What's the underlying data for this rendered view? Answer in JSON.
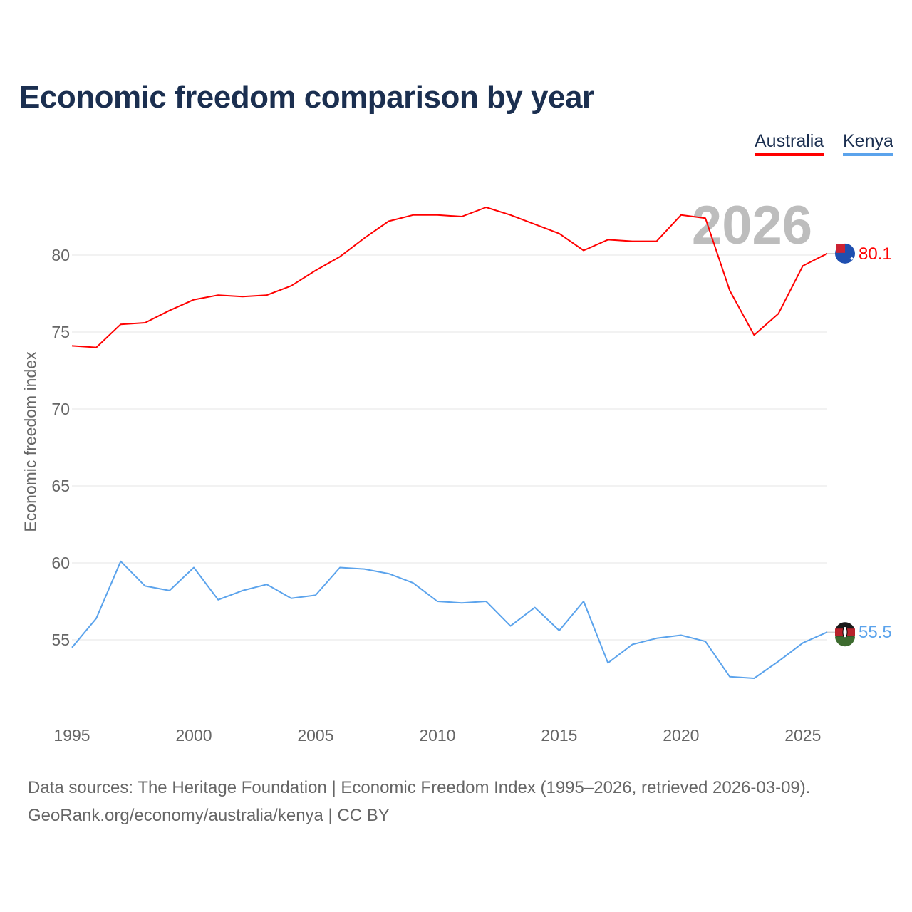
{
  "chart_data": {
    "type": "line",
    "title": "Economic freedom comparison by year",
    "xlabel": "",
    "ylabel": "Economic freedom index",
    "xlim": [
      1995,
      2026
    ],
    "ylim": [
      50,
      85
    ],
    "x_ticks": [
      "1995",
      "2000",
      "2005",
      "2010",
      "2015",
      "2020",
      "2025"
    ],
    "y_ticks": [
      "55",
      "60",
      "65",
      "70",
      "75",
      "80"
    ],
    "grid": true,
    "legend_position": "top-right",
    "year_watermark": "2026",
    "x": [
      1995,
      1996,
      1997,
      1998,
      1999,
      2000,
      2001,
      2002,
      2003,
      2004,
      2005,
      2006,
      2007,
      2008,
      2009,
      2010,
      2011,
      2012,
      2013,
      2014,
      2015,
      2016,
      2017,
      2018,
      2019,
      2020,
      2021,
      2022,
      2023,
      2024,
      2025,
      2026
    ],
    "series": [
      {
        "name": "Australia",
        "color": "#ff0000",
        "end_label": "80.1",
        "values": [
          74.1,
          74.0,
          75.5,
          75.6,
          76.4,
          77.1,
          77.4,
          77.3,
          77.4,
          78.0,
          79.0,
          79.9,
          81.1,
          82.2,
          82.6,
          82.6,
          82.5,
          83.1,
          82.6,
          82.0,
          81.4,
          80.3,
          81.0,
          80.9,
          80.9,
          82.6,
          82.4,
          77.7,
          74.8,
          76.2,
          79.3,
          80.1
        ]
      },
      {
        "name": "Kenya",
        "color": "#5ba3ec",
        "end_label": "55.5",
        "values": [
          54.5,
          56.4,
          60.1,
          58.5,
          58.2,
          59.7,
          57.6,
          58.2,
          58.6,
          57.7,
          57.9,
          59.7,
          59.6,
          59.3,
          58.7,
          57.5,
          57.4,
          57.5,
          55.9,
          57.1,
          55.6,
          57.5,
          53.5,
          54.7,
          55.1,
          55.3,
          54.9,
          52.6,
          52.5,
          53.6,
          54.8,
          55.5
        ]
      }
    ]
  },
  "footer": {
    "line1": "Data sources: The Heritage Foundation | Economic Freedom Index (1995–2026, retrieved 2026-03-09).",
    "line2": "GeoRank.org/economy/australia/kenya | CC BY"
  }
}
